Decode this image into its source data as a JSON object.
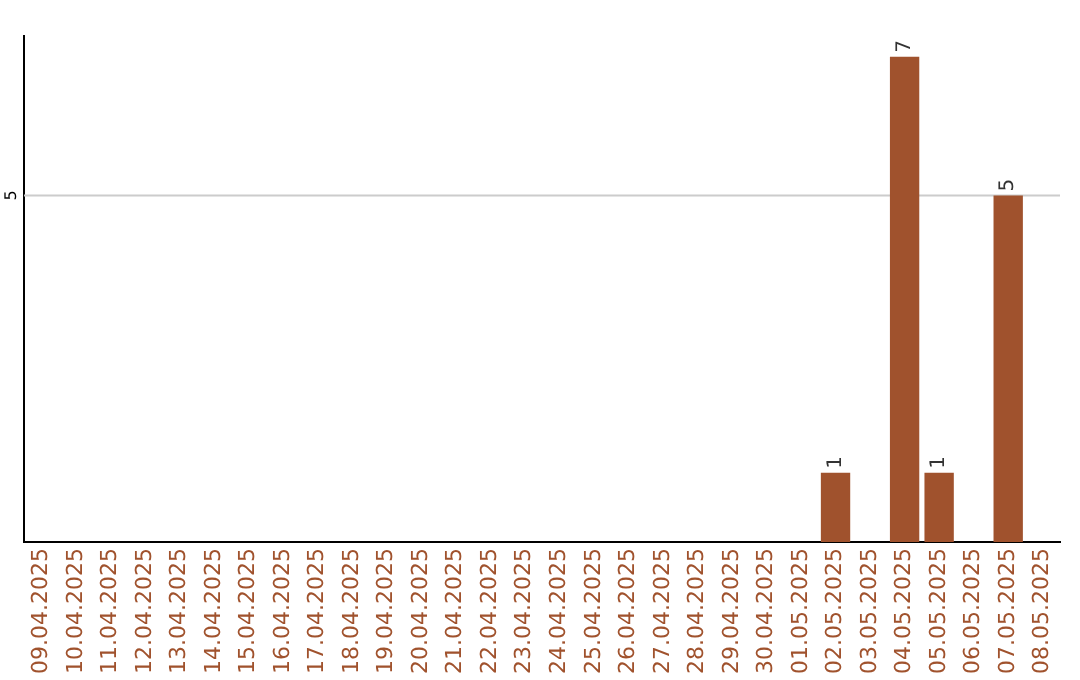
{
  "chart_data": {
    "type": "bar",
    "categories": [
      "09.04.2025",
      "10.04.2025",
      "11.04.2025",
      "12.04.2025",
      "13.04.2025",
      "14.04.2025",
      "15.04.2025",
      "16.04.2025",
      "17.04.2025",
      "18.04.2025",
      "19.04.2025",
      "20.04.2025",
      "21.04.2025",
      "22.04.2025",
      "23.04.2025",
      "24.04.2025",
      "25.04.2025",
      "26.04.2025",
      "27.04.2025",
      "28.04.2025",
      "29.04.2025",
      "30.04.2025",
      "01.05.2025",
      "02.05.2025",
      "03.05.2025",
      "04.05.2025",
      "05.05.2025",
      "06.05.2025",
      "07.05.2025",
      "08.05.2025"
    ],
    "values": [
      null,
      null,
      null,
      null,
      null,
      null,
      null,
      null,
      null,
      null,
      null,
      null,
      null,
      null,
      null,
      null,
      null,
      null,
      null,
      null,
      null,
      null,
      null,
      1,
      null,
      7,
      1,
      null,
      5,
      null
    ],
    "ylim": [
      0,
      7.3
    ],
    "ref_lines": [
      {
        "axis": "y",
        "value": 5,
        "label": "5",
        "color": "#cccccc"
      }
    ],
    "value_labels": [
      null,
      null,
      null,
      null,
      null,
      null,
      null,
      null,
      null,
      null,
      null,
      null,
      null,
      null,
      null,
      null,
      null,
      null,
      null,
      null,
      null,
      null,
      null,
      "1",
      null,
      "7",
      "1",
      null,
      "5",
      null
    ],
    "color": "#a0522d",
    "legend": false
  }
}
